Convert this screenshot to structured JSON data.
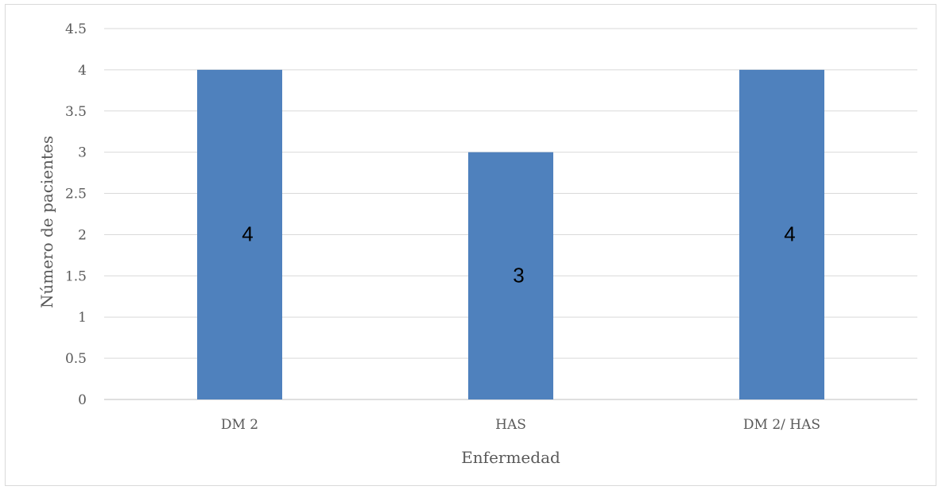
{
  "chart_data": {
    "type": "bar",
    "title": "",
    "xlabel": "Enfermedad",
    "ylabel": "Número de pacientes",
    "categories": [
      "DM 2",
      "HAS",
      "DM 2/ HAS"
    ],
    "values": [
      4,
      3,
      4
    ],
    "data_labels": [
      "4",
      "3",
      "4"
    ],
    "ylim": [
      0,
      4.5
    ],
    "yticks": [
      "0",
      "0.5",
      "1",
      "1.5",
      "2",
      "2.5",
      "3",
      "3.5",
      "4",
      "4.5"
    ],
    "grid": true,
    "legend": "none",
    "colors": {
      "bar": "#4f81bd",
      "grid": "#d9d9d9",
      "text": "#595959"
    }
  }
}
